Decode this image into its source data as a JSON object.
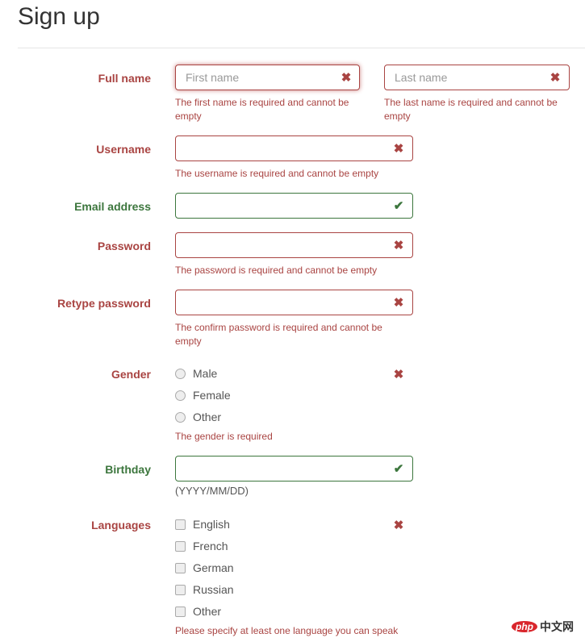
{
  "title": "Sign up",
  "colors": {
    "error": "#a94442",
    "success": "#3c763d"
  },
  "fields": {
    "full_name": {
      "label": "Full name",
      "first_placeholder": "First name",
      "last_placeholder": "Last name",
      "first_error": "The first name is required and cannot be empty",
      "last_error": "The last name is required and cannot be empty"
    },
    "username": {
      "label": "Username",
      "error": "The username is required and cannot be empty"
    },
    "email": {
      "label": "Email address"
    },
    "password": {
      "label": "Password",
      "error": "The password is required and cannot be empty"
    },
    "retype": {
      "label": "Retype password",
      "error": "The confirm password is required and cannot be empty"
    },
    "gender": {
      "label": "Gender",
      "options": [
        "Male",
        "Female",
        "Other"
      ],
      "error": "The gender is required"
    },
    "birthday": {
      "label": "Birthday",
      "hint": "(YYYY/MM/DD)"
    },
    "languages": {
      "label": "Languages",
      "options": [
        "English",
        "French",
        "German",
        "Russian",
        "Other"
      ],
      "error": "Please specify at least one language you can speak"
    }
  },
  "icons": {
    "error": "✖",
    "success": "✔"
  },
  "watermark": "php中文网"
}
